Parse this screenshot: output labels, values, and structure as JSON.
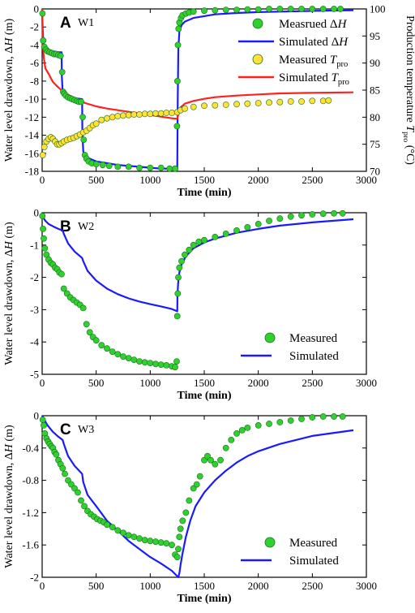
{
  "chart_data": [
    {
      "type": "line",
      "panel_letter": "A",
      "well_label": "W1",
      "xlabel": "Time (min)",
      "ylabel": "Water level drawdown, ΔH (m)",
      "y2label": "Production temperature T_pro (°C)",
      "xlim": [
        0,
        3000
      ],
      "ylim": [
        -18,
        0
      ],
      "y2lim": [
        70,
        100
      ],
      "xticks": [
        0,
        500,
        1000,
        1500,
        2000,
        2500,
        3000
      ],
      "yticks": [
        0,
        -2,
        -4,
        -6,
        -8,
        -10,
        -12,
        -14,
        -16,
        -18
      ],
      "y2ticks": [
        70,
        75,
        80,
        85,
        90,
        95,
        100
      ],
      "legend": [
        {
          "label": "Measrued ΔH",
          "marker": "circle",
          "color": "#2fd12f"
        },
        {
          "label": "Simulated ΔH",
          "marker": "line",
          "color": "#1a1aff"
        },
        {
          "label": "Measured T_pro",
          "marker": "circle",
          "color": "#ffe13a"
        },
        {
          "label": "Simulated T_pro",
          "marker": "line",
          "color": "#ff2020"
        }
      ],
      "series": [
        {
          "name": "Measrued ΔH",
          "kind": "scatter",
          "axis": "left",
          "color": "#2fd12f",
          "x": [
            3,
            10,
            20,
            35,
            50,
            70,
            90,
            110,
            130,
            150,
            170,
            185,
            195,
            205,
            220,
            240,
            260,
            280,
            300,
            320,
            340,
            360,
            375,
            385,
            395,
            410,
            430,
            460,
            500,
            560,
            620,
            700,
            800,
            900,
            1000,
            1100,
            1180,
            1230,
            1248,
            1252,
            1256,
            1262,
            1270,
            1285,
            1300,
            1330,
            1360,
            1400,
            1500,
            1600,
            1700,
            1800,
            1900,
            2000,
            2100,
            2200,
            2300,
            2400,
            2500,
            2600,
            2700,
            2760
          ],
          "y": [
            -0.5,
            -3.5,
            -4.2,
            -4.5,
            -4.7,
            -4.8,
            -4.9,
            -5.0,
            -5.0,
            -5.1,
            -5.2,
            -7.0,
            -9.2,
            -9.4,
            -9.6,
            -9.8,
            -9.9,
            -10.0,
            -10.1,
            -10.2,
            -10.3,
            -10.3,
            -12.0,
            -14.5,
            -16.2,
            -16.6,
            -16.9,
            -17.1,
            -17.2,
            -17.3,
            -17.4,
            -17.5,
            -17.5,
            -17.6,
            -17.6,
            -17.6,
            -17.7,
            -17.7,
            -13.0,
            -8.0,
            -4.0,
            -2.2,
            -1.5,
            -1.0,
            -0.7,
            -0.5,
            -0.4,
            -0.3,
            -0.2,
            -0.15,
            -0.1,
            -0.1,
            -0.05,
            -0.05,
            0,
            0,
            0,
            0,
            0,
            0,
            0,
            0
          ]
        },
        {
          "name": "Simulated ΔH",
          "kind": "line",
          "axis": "left",
          "color": "#1a1aff",
          "x": [
            0,
            3,
            8,
            15,
            30,
            60,
            100,
            150,
            180,
            182,
            190,
            200,
            250,
            300,
            370,
            372,
            380,
            400,
            500,
            600,
            700,
            800,
            900,
            1000,
            1100,
            1200,
            1250,
            1252,
            1255,
            1260,
            1270,
            1290,
            1320,
            1400,
            1500,
            1600,
            1800,
            2000,
            2200,
            2500,
            2880
          ],
          "y": [
            0,
            -1.5,
            -3.0,
            -4.0,
            -4.4,
            -4.6,
            -4.7,
            -4.8,
            -4.8,
            -7.5,
            -9.2,
            -9.6,
            -9.8,
            -9.9,
            -10.0,
            -13.5,
            -15.8,
            -16.4,
            -16.9,
            -17.1,
            -17.3,
            -17.4,
            -17.5,
            -17.6,
            -17.7,
            -17.7,
            -17.8,
            -15.0,
            -10.0,
            -4.5,
            -2.5,
            -1.8,
            -1.4,
            -1.0,
            -0.8,
            -0.6,
            -0.45,
            -0.35,
            -0.3,
            -0.22,
            -0.15
          ]
        },
        {
          "name": "Measured T_pro",
          "kind": "scatter",
          "axis": "right",
          "color": "#ffe13a",
          "x": [
            5,
            20,
            40,
            60,
            80,
            100,
            120,
            140,
            160,
            180,
            200,
            230,
            260,
            290,
            320,
            350,
            380,
            410,
            440,
            470,
            500,
            550,
            600,
            650,
            700,
            750,
            800,
            850,
            900,
            950,
            1000,
            1050,
            1100,
            1150,
            1200,
            1250,
            1280,
            1320,
            1400,
            1500,
            1600,
            1700,
            1800,
            1900,
            2000,
            2100,
            2200,
            2300,
            2400,
            2500,
            2600,
            2650
          ],
          "y": [
            73.0,
            74.5,
            75.5,
            76.0,
            76.3,
            76.0,
            75.5,
            75.0,
            75.0,
            75.2,
            75.5,
            75.8,
            76.0,
            76.2,
            76.5,
            76.8,
            77.2,
            77.5,
            78.0,
            78.5,
            78.8,
            79.5,
            79.8,
            80.0,
            80.2,
            80.3,
            80.4,
            80.5,
            80.5,
            80.6,
            80.6,
            80.7,
            80.7,
            80.8,
            80.8,
            80.9,
            81.3,
            81.6,
            81.9,
            82.1,
            82.2,
            82.3,
            82.4,
            82.5,
            82.6,
            82.7,
            82.8,
            82.9,
            82.9,
            83.0,
            83.0,
            83.1
          ]
        },
        {
          "name": "Simulated T_pro",
          "kind": "line",
          "axis": "right",
          "color": "#ff2020",
          "x": [
            0,
            5,
            15,
            30,
            60,
            100,
            150,
            200,
            300,
            400,
            500,
            600,
            700,
            800,
            900,
            1000,
            1100,
            1200,
            1250,
            1260,
            1280,
            1320,
            1400,
            1500,
            1600,
            1800,
            2000,
            2200,
            2500,
            2880
          ],
          "y": [
            100,
            94,
            91,
            89,
            88,
            86.5,
            85.5,
            84.6,
            83.5,
            82.6,
            82.0,
            81.6,
            81.3,
            81.0,
            80.7,
            80.4,
            80.1,
            79.8,
            79.7,
            80.5,
            81.8,
            82.5,
            83.0,
            83.4,
            83.7,
            84.0,
            84.2,
            84.4,
            84.5,
            84.6
          ]
        }
      ]
    },
    {
      "type": "line",
      "panel_letter": "B",
      "well_label": "W2",
      "xlabel": "Time (min)",
      "ylabel": "Water level drawdown, ΔH (m)",
      "xlim": [
        0,
        3000
      ],
      "ylim": [
        -5,
        0
      ],
      "xticks": [
        0,
        500,
        1000,
        1500,
        2000,
        2500,
        3000
      ],
      "yticks": [
        0,
        -1,
        -2,
        -3,
        -4,
        -5
      ],
      "legend": [
        {
          "label": "Measured",
          "marker": "circle",
          "color": "#2fd12f"
        },
        {
          "label": "Simulated",
          "marker": "line",
          "color": "#1a1aff"
        }
      ],
      "series": [
        {
          "name": "Measured",
          "kind": "scatter",
          "color": "#2fd12f",
          "x": [
            2,
            8,
            15,
            25,
            40,
            60,
            80,
            100,
            120,
            140,
            160,
            180,
            200,
            230,
            260,
            290,
            320,
            350,
            380,
            410,
            440,
            470,
            500,
            550,
            600,
            650,
            700,
            750,
            800,
            850,
            900,
            950,
            1000,
            1050,
            1100,
            1150,
            1200,
            1230,
            1245,
            1250,
            1255,
            1260,
            1270,
            1290,
            1320,
            1360,
            1400,
            1450,
            1500,
            1600,
            1700,
            1800,
            1900,
            2000,
            2100,
            2200,
            2300,
            2400,
            2500,
            2600,
            2700,
            2780
          ],
          "y": [
            -0.1,
            -0.5,
            -0.8,
            -1.1,
            -1.3,
            -1.45,
            -1.55,
            -1.6,
            -1.7,
            -1.75,
            -1.85,
            -1.9,
            -2.35,
            -2.5,
            -2.62,
            -2.7,
            -2.78,
            -2.85,
            -2.95,
            -3.45,
            -3.7,
            -3.85,
            -3.95,
            -4.1,
            -4.2,
            -4.3,
            -4.38,
            -4.45,
            -4.5,
            -4.55,
            -4.6,
            -4.63,
            -4.65,
            -4.68,
            -4.7,
            -4.72,
            -4.75,
            -4.78,
            -4.6,
            -3.2,
            -2.5,
            -2.0,
            -1.7,
            -1.5,
            -1.3,
            -1.15,
            -1.0,
            -0.9,
            -0.85,
            -0.75,
            -0.65,
            -0.55,
            -0.45,
            -0.35,
            -0.25,
            -0.18,
            -0.12,
            -0.08,
            -0.05,
            -0.03,
            -0.02,
            -0.02
          ]
        },
        {
          "name": "Simulated",
          "kind": "line",
          "color": "#1a1aff",
          "x": [
            0,
            10,
            30,
            60,
            100,
            150,
            190,
            200,
            240,
            300,
            370,
            380,
            420,
            500,
            600,
            700,
            800,
            900,
            1000,
            1100,
            1200,
            1250,
            1252,
            1258,
            1270,
            1290,
            1330,
            1400,
            1500,
            1600,
            1800,
            2000,
            2200,
            2500,
            2880
          ],
          "y": [
            0,
            -0.15,
            -0.25,
            -0.35,
            -0.42,
            -0.5,
            -0.55,
            -0.65,
            -0.95,
            -1.2,
            -1.4,
            -1.5,
            -1.8,
            -2.1,
            -2.35,
            -2.52,
            -2.65,
            -2.75,
            -2.83,
            -2.9,
            -2.98,
            -3.05,
            -2.6,
            -2.2,
            -1.85,
            -1.6,
            -1.35,
            -1.1,
            -0.92,
            -0.8,
            -0.62,
            -0.5,
            -0.4,
            -0.3,
            -0.2
          ]
        }
      ]
    },
    {
      "type": "line",
      "panel_letter": "C",
      "well_label": "W3",
      "xlabel": "Time (min)",
      "ylabel": "Water level drawdown, ΔH (m)",
      "xlim": [
        0,
        3000
      ],
      "ylim": [
        -2,
        0
      ],
      "xticks": [
        0,
        500,
        1000,
        1500,
        2000,
        2500,
        3000
      ],
      "yticks": [
        0,
        -0.4,
        -0.8,
        -1.2,
        -1.6,
        -2
      ],
      "legend": [
        {
          "label": "Measured",
          "marker": "circle",
          "color": "#2fd12f"
        },
        {
          "label": "Simulated",
          "marker": "line",
          "color": "#1a1aff"
        }
      ],
      "series": [
        {
          "name": "Measured",
          "kind": "scatter",
          "color": "#2fd12f",
          "x": [
            5,
            15,
            25,
            40,
            55,
            70,
            85,
            100,
            115,
            130,
            150,
            170,
            190,
            210,
            240,
            270,
            300,
            330,
            360,
            390,
            420,
            450,
            480,
            510,
            540,
            570,
            600,
            650,
            700,
            750,
            800,
            850,
            900,
            950,
            1000,
            1050,
            1100,
            1150,
            1200,
            1230,
            1250,
            1260,
            1270,
            1280,
            1300,
            1330,
            1360,
            1400,
            1430,
            1460,
            1500,
            1530,
            1560,
            1600,
            1650,
            1700,
            1750,
            1800,
            1850,
            1900,
            2000,
            2100,
            2200,
            2300,
            2400,
            2500,
            2600,
            2700,
            2780
          ],
          "y": [
            -0.05,
            -0.12,
            -0.22,
            -0.28,
            -0.32,
            -0.35,
            -0.38,
            -0.4,
            -0.45,
            -0.48,
            -0.55,
            -0.6,
            -0.65,
            -0.72,
            -0.8,
            -0.85,
            -0.9,
            -0.95,
            -1.05,
            -1.12,
            -1.18,
            -1.22,
            -1.25,
            -1.28,
            -1.3,
            -1.32,
            -1.35,
            -1.38,
            -1.42,
            -1.45,
            -1.48,
            -1.5,
            -1.52,
            -1.54,
            -1.55,
            -1.56,
            -1.57,
            -1.58,
            -1.6,
            -1.72,
            -1.75,
            -1.65,
            -1.5,
            -1.4,
            -1.3,
            -1.2,
            -1.05,
            -0.9,
            -0.85,
            -0.75,
            -0.55,
            -0.5,
            -0.55,
            -0.6,
            -0.55,
            -0.4,
            -0.3,
            -0.22,
            -0.18,
            -0.15,
            -0.12,
            -0.1,
            -0.08,
            -0.06,
            -0.04,
            -0.02,
            -0.01,
            -0.01,
            -0.01
          ]
        },
        {
          "name": "Simulated",
          "kind": "line",
          "color": "#1a1aff",
          "x": [
            0,
            20,
            50,
            100,
            150,
            190,
            200,
            240,
            300,
            370,
            380,
            420,
            500,
            600,
            700,
            800,
            900,
            1000,
            1100,
            1200,
            1260,
            1270,
            1280,
            1300,
            1330,
            1370,
            1420,
            1500,
            1600,
            1700,
            1800,
            1900,
            2000,
            2200,
            2500,
            2880
          ],
          "y": [
            0,
            -0.05,
            -0.12,
            -0.2,
            -0.26,
            -0.3,
            -0.35,
            -0.5,
            -0.62,
            -0.72,
            -0.82,
            -0.98,
            -1.12,
            -1.3,
            -1.42,
            -1.55,
            -1.65,
            -1.75,
            -1.83,
            -1.92,
            -2.0,
            -1.95,
            -1.85,
            -1.7,
            -1.5,
            -1.3,
            -1.12,
            -0.95,
            -0.8,
            -0.68,
            -0.58,
            -0.5,
            -0.44,
            -0.35,
            -0.25,
            -0.18
          ]
        }
      ]
    }
  ]
}
